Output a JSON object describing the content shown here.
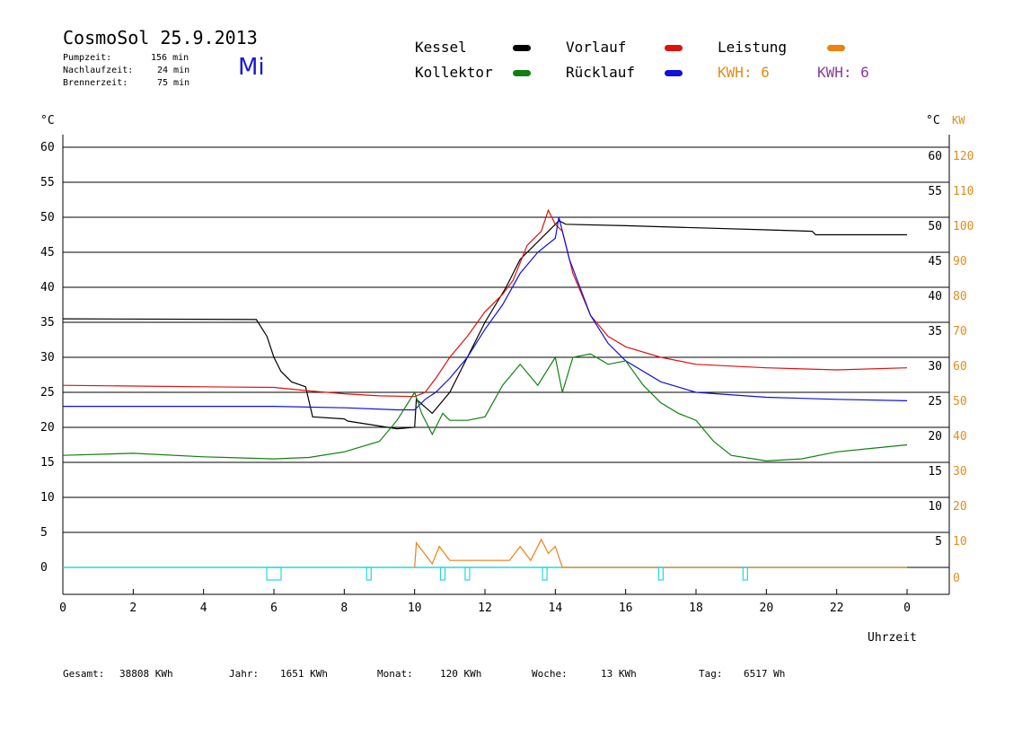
{
  "header": {
    "title": "CosmoSol 25.9.2013",
    "pump_label": "Pumpzeit:",
    "pump_value": "156 min",
    "after_label": "Nachlaufzeit:",
    "after_value": "24 min",
    "burner_label": "Brennerzeit:",
    "burner_value": "75 min",
    "weekday": "Mi"
  },
  "legend": {
    "kessel": "Kessel",
    "vorlauf": "Vorlauf",
    "leistung": "Leistung",
    "kollektor": "Kollektor",
    "ruecklauf": "Rücklauf",
    "kwh1": "KWH: 6",
    "kwh2": "KWH: 6",
    "colors": {
      "kessel": "#000000",
      "vorlauf": "#e01010",
      "leistung": "#f08010",
      "kollektor": "#108010",
      "ruecklauf": "#1010e0",
      "kwh1": "#e08c1c",
      "kwh2": "#8a3aa0"
    }
  },
  "footer": {
    "gesamt_label": "Gesamt:",
    "gesamt_value": "38808 KWh",
    "jahr_label": "Jahr:",
    "jahr_value": "1651 KWh",
    "monat_label": "Monat:",
    "monat_value": "120 KWh",
    "woche_label": "Woche:",
    "woche_value": "13 KWh",
    "tag_label": "Tag:",
    "tag_value": "6517 Wh"
  },
  "chart_data": {
    "type": "line",
    "xlabel": "Uhrzeit",
    "ylabel_left": "°C",
    "ylabel_right_c": "°C",
    "ylabel_right_kw": "KW",
    "xlim": [
      0,
      24
    ],
    "ylim": [
      0,
      60
    ],
    "xticks": [
      "0",
      "2",
      "4",
      "6",
      "8",
      "10",
      "12",
      "14",
      "16",
      "18",
      "20",
      "22",
      "0"
    ],
    "yticks_left": [
      "0",
      "5",
      "10",
      "15",
      "20",
      "25",
      "30",
      "35",
      "40",
      "45",
      "50",
      "55",
      "60"
    ],
    "yticks_right_c": [
      "5",
      "10",
      "15",
      "20",
      "25",
      "30",
      "35",
      "40",
      "45",
      "50",
      "55",
      "60"
    ],
    "yticks_right_kw": [
      "0",
      "10",
      "20",
      "30",
      "40",
      "50",
      "60",
      "70",
      "80",
      "90",
      "100",
      "110",
      "120"
    ],
    "grid": true,
    "series": [
      {
        "name": "Kessel",
        "color": "#000000",
        "points": [
          [
            0,
            35.5
          ],
          [
            5.5,
            35.4
          ],
          [
            5.8,
            33
          ],
          [
            6.0,
            30
          ],
          [
            6.2,
            28
          ],
          [
            6.5,
            26.5
          ],
          [
            6.9,
            25.8
          ],
          [
            7.1,
            21.5
          ],
          [
            8.0,
            21.2
          ],
          [
            8.1,
            20.9
          ],
          [
            9.5,
            19.8
          ],
          [
            10.0,
            20
          ],
          [
            10.05,
            24
          ],
          [
            10.5,
            22
          ],
          [
            11,
            25
          ],
          [
            11.5,
            30
          ],
          [
            12,
            35
          ],
          [
            12.6,
            40
          ],
          [
            13.0,
            44
          ],
          [
            13.6,
            47
          ],
          [
            14.1,
            49.5
          ],
          [
            14.3,
            49
          ],
          [
            16,
            48.8
          ],
          [
            18,
            48.5
          ],
          [
            20,
            48.2
          ],
          [
            21.3,
            48
          ],
          [
            21.4,
            47.5
          ],
          [
            24,
            47.5
          ]
        ]
      },
      {
        "name": "Vorlauf",
        "color": "#e01010",
        "points": [
          [
            0,
            26
          ],
          [
            2,
            25.9
          ],
          [
            4,
            25.8
          ],
          [
            6,
            25.7
          ],
          [
            7,
            25.2
          ],
          [
            8,
            24.8
          ],
          [
            9,
            24.5
          ],
          [
            10,
            24.4
          ],
          [
            10.3,
            25
          ],
          [
            10.6,
            27
          ],
          [
            11,
            30
          ],
          [
            11.5,
            33
          ],
          [
            12,
            36.5
          ],
          [
            12.5,
            39
          ],
          [
            12.8,
            41
          ],
          [
            13.2,
            46
          ],
          [
            13.6,
            48
          ],
          [
            13.8,
            51
          ],
          [
            14.0,
            49
          ],
          [
            14.2,
            48
          ],
          [
            14.5,
            42
          ],
          [
            15,
            36
          ],
          [
            15.5,
            33
          ],
          [
            16,
            31.5
          ],
          [
            17,
            30
          ],
          [
            18,
            29
          ],
          [
            20,
            28.5
          ],
          [
            22,
            28.2
          ],
          [
            24,
            28.5
          ]
        ]
      },
      {
        "name": "Rücklauf",
        "color": "#1010e0",
        "points": [
          [
            0,
            23
          ],
          [
            4,
            23
          ],
          [
            6,
            23
          ],
          [
            8,
            22.8
          ],
          [
            9.5,
            22.5
          ],
          [
            10,
            22.5
          ],
          [
            10.3,
            24
          ],
          [
            10.6,
            25
          ],
          [
            11,
            27
          ],
          [
            11.5,
            30
          ],
          [
            12,
            34
          ],
          [
            12.5,
            37.5
          ],
          [
            13,
            42
          ],
          [
            13.5,
            45
          ],
          [
            14,
            47
          ],
          [
            14.1,
            50
          ],
          [
            14.4,
            44
          ],
          [
            15,
            36
          ],
          [
            15.5,
            32
          ],
          [
            16,
            29.5
          ],
          [
            17,
            26.5
          ],
          [
            18,
            25
          ],
          [
            20,
            24.3
          ],
          [
            22,
            24
          ],
          [
            24,
            23.8
          ]
        ]
      },
      {
        "name": "Kollektor",
        "color": "#108010",
        "points": [
          [
            0,
            16
          ],
          [
            2,
            16.3
          ],
          [
            4,
            15.8
          ],
          [
            6,
            15.5
          ],
          [
            7,
            15.7
          ],
          [
            8,
            16.5
          ],
          [
            9,
            18
          ],
          [
            9.5,
            21
          ],
          [
            10,
            25
          ],
          [
            10.2,
            22
          ],
          [
            10.5,
            19
          ],
          [
            10.8,
            22
          ],
          [
            11,
            21
          ],
          [
            11.5,
            21
          ],
          [
            12,
            21.5
          ],
          [
            12.5,
            26
          ],
          [
            13,
            29
          ],
          [
            13.5,
            26
          ],
          [
            14,
            30
          ],
          [
            14.2,
            25
          ],
          [
            14.5,
            30
          ],
          [
            15,
            30.5
          ],
          [
            15.5,
            29
          ],
          [
            16,
            29.5
          ],
          [
            16.5,
            26
          ],
          [
            17,
            23.5
          ],
          [
            17.5,
            22
          ],
          [
            18,
            21
          ],
          [
            18.5,
            18
          ],
          [
            19,
            16
          ],
          [
            20,
            15.2
          ],
          [
            21,
            15.5
          ],
          [
            22,
            16.5
          ],
          [
            23,
            17
          ],
          [
            24,
            17.5
          ]
        ]
      },
      {
        "name": "Leistung",
        "color": "#f08010",
        "points": [
          [
            10,
            0
          ],
          [
            10.05,
            3.5
          ],
          [
            10.5,
            0.5
          ],
          [
            10.7,
            3
          ],
          [
            11,
            1
          ],
          [
            12,
            1
          ],
          [
            12.7,
            1
          ],
          [
            13.0,
            3
          ],
          [
            13.3,
            1
          ],
          [
            13.6,
            4
          ],
          [
            13.8,
            2
          ],
          [
            14.0,
            3
          ],
          [
            14.2,
            0
          ],
          [
            24,
            0
          ]
        ]
      }
    ],
    "pump_markers_x": [
      6.0,
      8.7,
      10.8,
      11.5,
      13.7,
      17.0,
      19.4
    ]
  }
}
